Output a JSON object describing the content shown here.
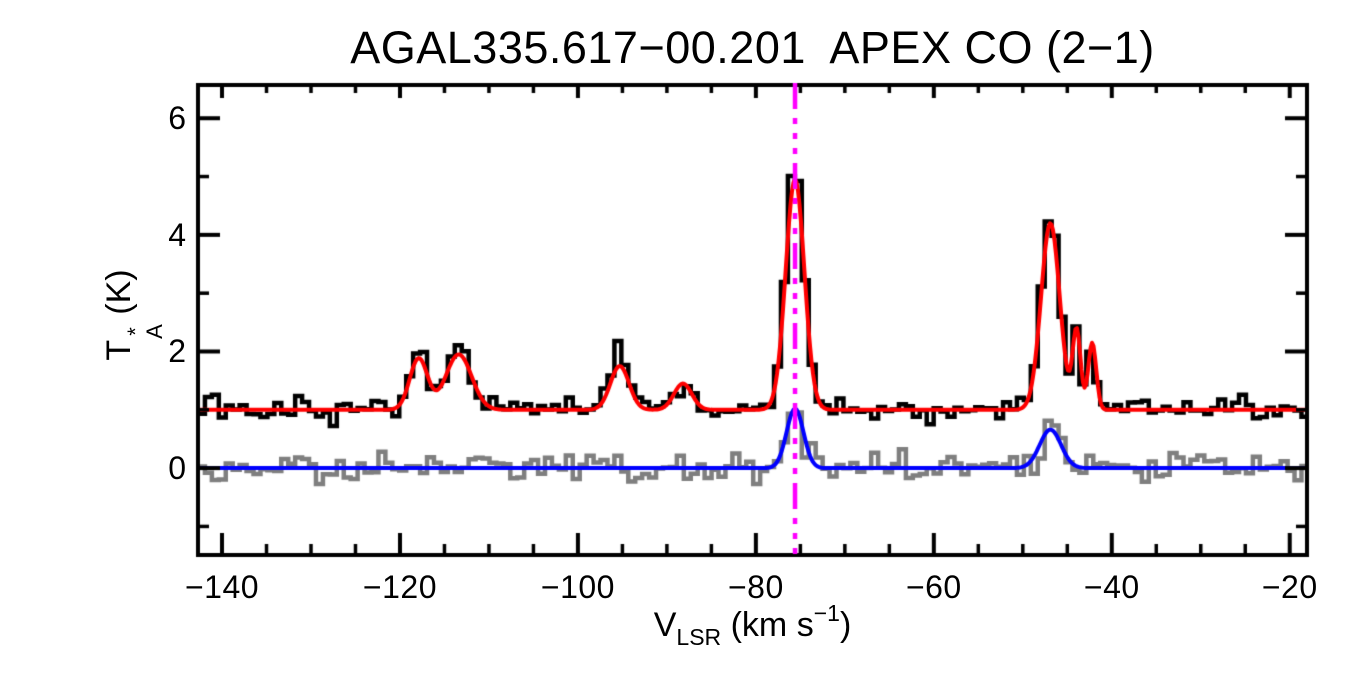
{
  "title": "AGAL335.617−00.201  APEX CO (2−1)",
  "labels": {
    "xlabel": {
      "base": "V",
      "sub": "LSR",
      "unit_open": " (km s",
      "exp": "−1",
      "unit_close": ")"
    },
    "ylabel": {
      "base": "T",
      "sup": "*",
      "sub": "A",
      "unit": " (K)"
    }
  },
  "colors": {
    "background": "#ffffff",
    "axis": "#000000",
    "observed_spectrum": "#000000",
    "secondary_spectrum": "#7f7f7f",
    "fit_curve": "#ff0000",
    "secondary_fit_curve": "#0000ff",
    "velocity_marker": "#ff00ff"
  },
  "chart_data": {
    "type": "line",
    "title": "AGAL335.617−00.201  APEX CO (2−1)",
    "xlabel": "V_LSR (km s^-1)",
    "ylabel": "T_A^* (K)",
    "xlim": [
      -142.7,
      -18.06
    ],
    "ylim": [
      -1.49,
      6.57
    ],
    "x_major_ticks": [
      -140,
      -120,
      -100,
      -80,
      -60,
      -40,
      -20
    ],
    "x_tick_labels": [
      "−140",
      "−120",
      "−100",
      "−80",
      "−60",
      "−40",
      "−20"
    ],
    "x_minor_step": 5,
    "y_major_ticks": [
      0,
      2,
      4,
      6
    ],
    "y_tick_labels": [
      "0",
      "2",
      "4",
      "6"
    ],
    "y_minor_step": 1,
    "grid": false,
    "legend": null,
    "bins": {
      "start": -142.7,
      "width": 0.78,
      "count": 160
    },
    "models": {
      "emission": {
        "baseline": 1.0,
        "components": [
          {
            "amp": 0.88,
            "center": -117.9,
            "sigma": 1.0
          },
          {
            "amp": 0.95,
            "center": -113.4,
            "sigma": 1.45
          },
          {
            "amp": 0.75,
            "center": -95.3,
            "sigma": 1.05
          },
          {
            "amp": 0.45,
            "center": -88.2,
            "sigma": 1.0
          },
          {
            "amp": 3.95,
            "center": -75.6,
            "sigma": 1.05
          },
          {
            "amp": 3.2,
            "center": -46.9,
            "sigma": 1.05
          },
          {
            "amp": 1.35,
            "center": -43.95,
            "sigma": 0.45
          },
          {
            "amp": 1.15,
            "center": -42.2,
            "sigma": 0.45
          }
        ]
      },
      "secondary": {
        "baseline": 0.0,
        "components": [
          {
            "amp": 1.02,
            "center": -75.6,
            "sigma": 0.95
          },
          {
            "amp": 0.66,
            "center": -46.9,
            "sigma": 1.2
          }
        ]
      }
    },
    "series": [
      {
        "name": "observed-spectrum-histogram",
        "kind": "histogram",
        "model": "emission",
        "color": "#000000",
        "line_width": 4.5,
        "noise_sigma": 0.1,
        "noise_seed": 13,
        "excess_components": [
          {
            "amp": 0.38,
            "center": -75.7,
            "sigma": 0.5
          },
          {
            "amp": 0.25,
            "center": -95.4,
            "sigma": 0.45
          },
          {
            "amp": 0.2,
            "center": -117.8,
            "sigma": 0.6
          },
          {
            "amp": 0.15,
            "center": -113.2,
            "sigma": 0.6
          },
          {
            "amp": 0.1,
            "center": -46.6,
            "sigma": 0.7
          }
        ]
      },
      {
        "name": "secondary-spectrum-histogram",
        "kind": "histogram",
        "model": "secondary",
        "color": "#7f7f7f",
        "line_width": 4.5,
        "noise_sigma": 0.135,
        "noise_seed": 97,
        "excess_components": [
          {
            "amp": 0.18,
            "center": -46.5,
            "sigma": 0.6
          }
        ]
      },
      {
        "name": "gaussian-fit-curve",
        "kind": "curve",
        "model": "secondary",
        "color": "#0000ff",
        "line_width": 4,
        "noise_sigma": 0,
        "noise_seed": 0,
        "excess_components": []
      },
      {
        "name": "emission-fit-curve",
        "kind": "curve",
        "model": "emission",
        "color": "#ff0000",
        "line_width": 4,
        "noise_sigma": 0,
        "noise_seed": 0,
        "excess_components": []
      }
    ],
    "draw_order": [
      "secondary-spectrum-histogram",
      "observed-spectrum-histogram",
      "gaussian-fit-curve",
      "emission-fit-curve"
    ],
    "marker_line": {
      "x": -75.6,
      "color": "#ff00ff",
      "style": "dash-dot-dot-dot",
      "width": 4.5
    }
  }
}
